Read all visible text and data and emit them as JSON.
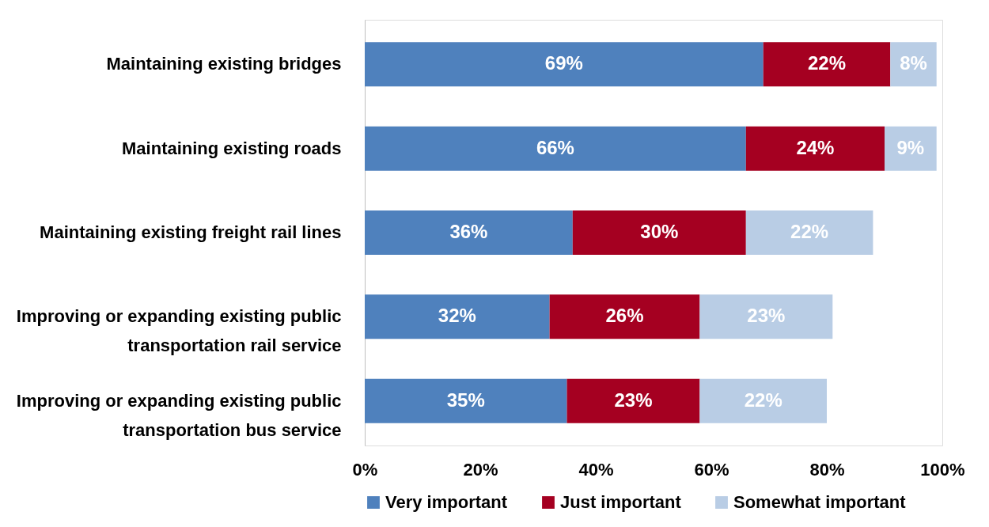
{
  "chart_data": {
    "type": "bar",
    "orientation": "horizontal",
    "stacked": true,
    "categories": [
      "Maintaining existing bridges",
      "Maintaining existing roads",
      "Maintaining existing freight rail lines",
      "Improving or expanding existing public transportation rail service",
      "Improving or expanding existing public transportation bus service"
    ],
    "series": [
      {
        "name": "Very important",
        "color": "#4f81bd",
        "values": [
          69,
          66,
          36,
          32,
          35
        ],
        "value_labels": [
          "69%",
          "66%",
          "36%",
          "32%",
          "35%"
        ]
      },
      {
        "name": "Just important",
        "color": "#a50021",
        "values": [
          22,
          24,
          30,
          26,
          23
        ],
        "value_labels": [
          "22%",
          "24%",
          "30%",
          "26%",
          "23%"
        ]
      },
      {
        "name": "Somewhat important",
        "color": "#b9cde5",
        "values": [
          8,
          9,
          22,
          23,
          22
        ],
        "value_labels": [
          "8%",
          "9%",
          "22%",
          "23%",
          "22%"
        ]
      }
    ],
    "xlim": [
      0,
      100
    ],
    "xticks": [
      {
        "value": 0,
        "label": "0%"
      },
      {
        "value": 20,
        "label": "20%"
      },
      {
        "value": 40,
        "label": "40%"
      },
      {
        "value": 60,
        "label": "60%"
      },
      {
        "value": 80,
        "label": "80%"
      },
      {
        "value": 100,
        "label": "100%"
      }
    ],
    "grid": false,
    "legend": "bottom"
  }
}
